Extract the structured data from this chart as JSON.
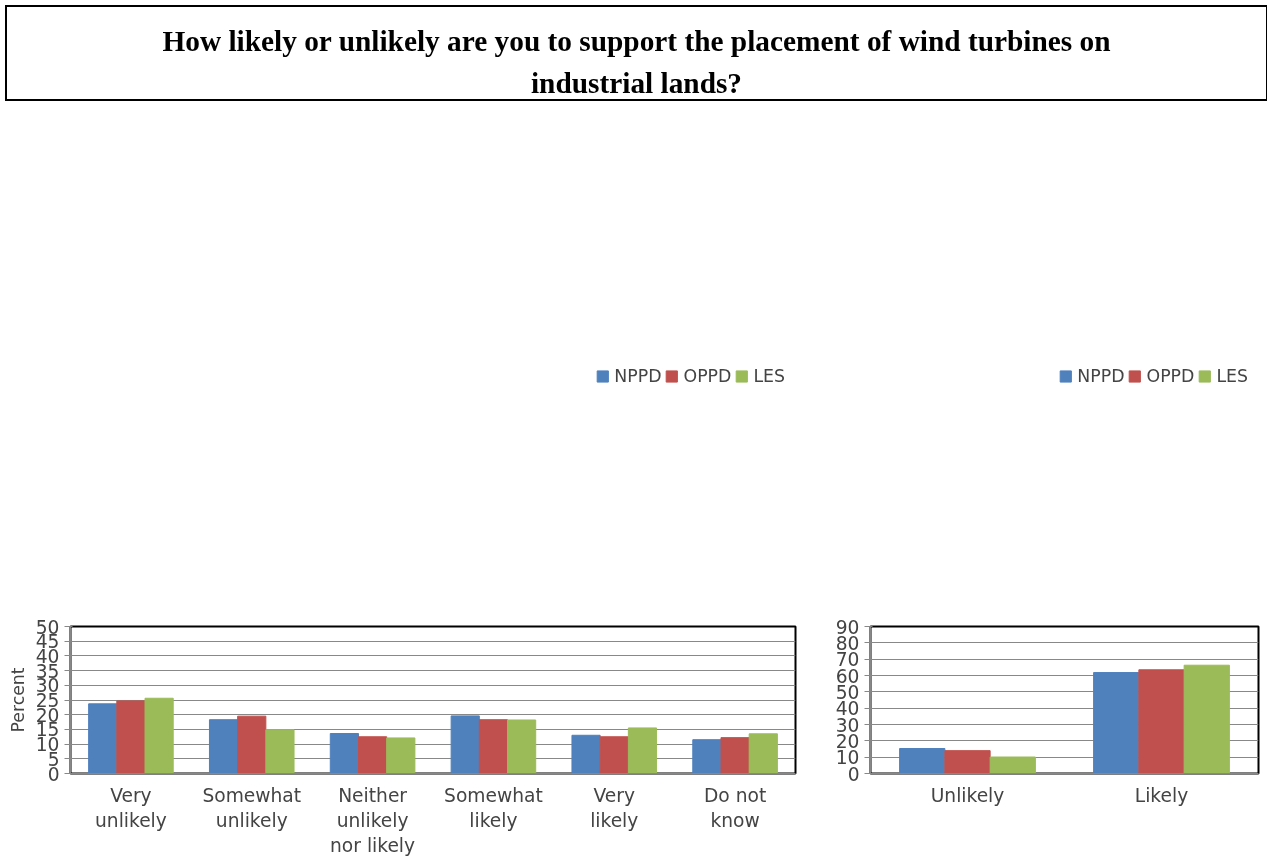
{
  "chart_data": [
    {
      "type": "bar",
      "title": "How likely or unlikely are you to support the placement of wind turbines on industrial lands?",
      "ylabel": "Percent",
      "categories": [
        "Very unlikely",
        "Somewhat unlikely",
        "Neither unlikely nor likely",
        "Somewhat likely",
        "Very likely",
        "Do not know"
      ],
      "series": [
        {
          "name": "NPPD",
          "color": "#4f81bd",
          "values": [
            23.7,
            18.3,
            13.6,
            19.6,
            13.0,
            11.5
          ]
        },
        {
          "name": "OPPD",
          "color": "#c0504d",
          "values": [
            24.7,
            19.5,
            12.5,
            18.3,
            12.5,
            12.2
          ]
        },
        {
          "name": "LES",
          "color": "#9bbb59",
          "values": [
            25.6,
            14.9,
            12.1,
            18.2,
            15.5,
            13.5
          ]
        }
      ],
      "ylim": [
        0,
        50
      ],
      "yticks": [
        0,
        5,
        10,
        15,
        20,
        25,
        30,
        35,
        40,
        45,
        50
      ],
      "grid": "y",
      "legend": "top"
    },
    {
      "type": "bar",
      "categories": [
        "Unlikely",
        "Likely"
      ],
      "series": [
        {
          "name": "NPPD",
          "color": "#4f81bd",
          "values": [
            15.3,
            61.8
          ]
        },
        {
          "name": "OPPD",
          "color": "#c0504d",
          "values": [
            14.0,
            63.5
          ]
        },
        {
          "name": "LES",
          "color": "#9bbb59",
          "values": [
            10.1,
            66.3
          ]
        }
      ],
      "ylim": [
        0,
        90
      ],
      "yticks": [
        0,
        10,
        20,
        30,
        40,
        50,
        60,
        70,
        80,
        90
      ],
      "grid": "y",
      "legend": "top"
    }
  ]
}
